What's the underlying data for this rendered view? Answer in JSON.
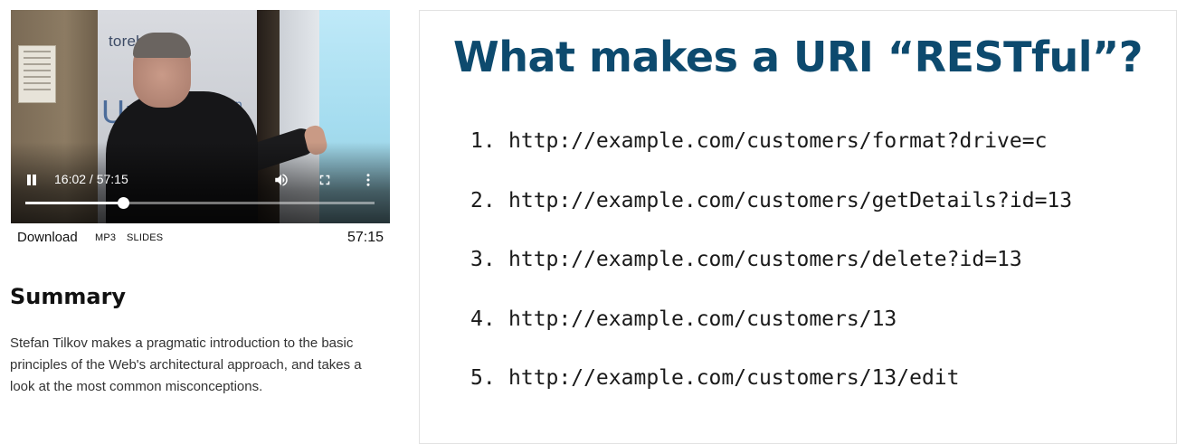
{
  "player": {
    "time_display": "16:02 / 57:15",
    "progress_fraction": 0.28,
    "banner_text": "torebrand",
    "banner_large": "Un",
    "banner_small": "ap"
  },
  "downloads": {
    "download_label": "Download",
    "mp3_label": "MP3",
    "slides_label": "SLIDES",
    "duration": "57:15"
  },
  "summary": {
    "title": "Summary",
    "text": "Stefan Tilkov makes a pragmatic introduction to the basic principles of the Web's architectural approach, and takes a look at the most common misconceptions."
  },
  "slide": {
    "title": "What makes a URI “RESTful”?",
    "items": [
      {
        "num": "1.",
        "url": "http://example.com/customers/format?drive=c"
      },
      {
        "num": "2.",
        "url": "http://example.com/customers/getDetails?id=13"
      },
      {
        "num": "3.",
        "url": "http://example.com/customers/delete?id=13"
      },
      {
        "num": "4.",
        "url": "http://example.com/customers/13"
      },
      {
        "num": "5.",
        "url": "http://example.com/customers/13/edit"
      }
    ]
  },
  "icons": {
    "pause": "pause-icon",
    "volume": "volume-icon",
    "fullscreen": "fullscreen-icon",
    "more": "more-vert-icon"
  },
  "colors": {
    "slide_title": "#0d4a6e",
    "player_controls": "#ffffff"
  }
}
